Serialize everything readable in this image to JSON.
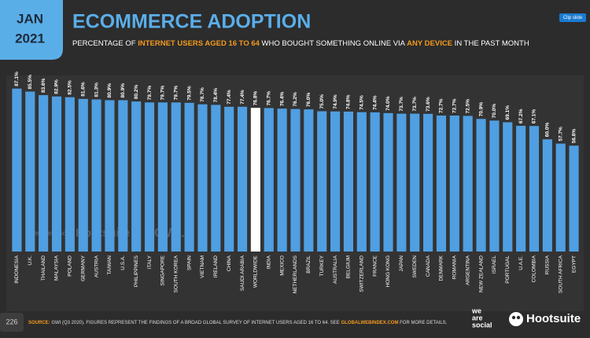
{
  "date_badge": {
    "month": "JAN",
    "year": "2021"
  },
  "chart_data": {
    "type": "bar",
    "title": "ECOMMERCE ADOPTION",
    "subtitle": [
      {
        "text": "PERCENTAGE OF ",
        "highlight": false
      },
      {
        "text": "INTERNET USERS AGED 16 TO 64",
        "highlight": true
      },
      {
        "text": " WHO BOUGHT SOMETHING ONLINE VIA ",
        "highlight": false
      },
      {
        "text": "ANY DEVICE",
        "highlight": true
      },
      {
        "text": " IN THE PAST MONTH",
        "highlight": false
      }
    ],
    "categories": [
      "INDONESIA",
      "U.K.",
      "THAILAND",
      "MALAYSIA",
      "POLAND",
      "GERMANY",
      "AUSTRIA",
      "TAIWAN",
      "U.S.A.",
      "PHILIPPINES",
      "ITALY",
      "SINGAPORE",
      "SOUTH KOREA",
      "SPAIN",
      "VIETNAM",
      "IRELAND",
      "CHINA",
      "SAUDI ARABIA",
      "WORLDWIDE",
      "INDIA",
      "MEXICO",
      "NETHERLANDS",
      "BRAZIL",
      "TURKEY",
      "AUSTRALIA",
      "BELGIUM",
      "SWITZERLAND",
      "FRANCE",
      "HONG KONG",
      "JAPAN",
      "SWEDEN",
      "CANADA",
      "DENMARK",
      "ROMANIA",
      "ARGENTINA",
      "NEW ZEALAND",
      "ISRAEL",
      "PORTUGAL",
      "U.A.E.",
      "COLOMBIA",
      "RUSSIA",
      "SOUTH AFRICA",
      "EGYPT"
    ],
    "values": [
      87.1,
      85.5,
      83.6,
      82.9,
      82.5,
      81.6,
      81.3,
      80.9,
      80.9,
      80.2,
      79.7,
      79.7,
      79.7,
      79.5,
      78.7,
      78.4,
      77.4,
      77.4,
      76.8,
      76.7,
      76.4,
      76.2,
      76.0,
      75.0,
      74.9,
      74.8,
      74.5,
      74.4,
      74.0,
      73.7,
      73.7,
      73.6,
      72.7,
      72.7,
      72.5,
      70.9,
      70.0,
      69.1,
      67.2,
      67.1,
      60.0,
      57.7,
      56.6
    ],
    "value_labels": [
      "87.1%",
      "85.5%",
      "83.6%",
      "82.9%",
      "82.5%",
      "81.6%",
      "81.3%",
      "80.9%",
      "80.9%",
      "80.2%",
      "79.7%",
      "79.7%",
      "79.7%",
      "79.5%",
      "78.7%",
      "78.4%",
      "77.4%",
      "77.4%",
      "76.8%",
      "76.7%",
      "76.4%",
      "76.2%",
      "76.0%",
      "75.0%",
      "74.9%",
      "74.8%",
      "74.5%",
      "74.4%",
      "74.0%",
      "73.7%",
      "73.7%",
      "73.6%",
      "72.7%",
      "72.7%",
      "72.5%",
      "70.9%",
      "70.0%",
      "69.1%",
      "67.2%",
      "67.1%",
      "60.0%",
      "57.7%",
      "56.6%"
    ],
    "colors": [
      "#4f9fe2",
      "#4f9fe2",
      "#4f9fe2",
      "#4f9fe2",
      "#4f9fe2",
      "#4f9fe2",
      "#4f9fe2",
      "#4f9fe2",
      "#4f9fe2",
      "#4f9fe2",
      "#4f9fe2",
      "#4f9fe2",
      "#4f9fe2",
      "#4f9fe2",
      "#4f9fe2",
      "#4f9fe2",
      "#4f9fe2",
      "#4f9fe2",
      "#ffffff",
      "#4f9fe2",
      "#4f9fe2",
      "#4f9fe2",
      "#4f9fe2",
      "#4f9fe2",
      "#4f9fe2",
      "#4f9fe2",
      "#4f9fe2",
      "#4f9fe2",
      "#4f9fe2",
      "#4f9fe2",
      "#4f9fe2",
      "#4f9fe2",
      "#4f9fe2",
      "#4f9fe2",
      "#4f9fe2",
      "#4f9fe2",
      "#4f9fe2",
      "#4f9fe2",
      "#4f9fe2",
      "#4f9fe2",
      "#4f9fe2",
      "#4f9fe2",
      "#4f9fe2"
    ],
    "ylim": [
      0,
      100
    ]
  },
  "footer": {
    "page_number": "226",
    "source_label": "SOURCE:",
    "source_text": " GWI (Q3 2020). FIGURES REPRESENT THE FINDINGS OF A BROAD GLOBAL SURVEY OF INTERNET USERS AGED 16 TO 64. SEE ",
    "source_link": "GLOBALWEBINDEX.COM",
    "source_end": " FOR MORE DETAILS."
  },
  "logos": {
    "we_are_social": [
      "we",
      "are",
      "social"
    ],
    "hootsuite": "Hootsuite"
  },
  "watermarks": [
    "we are social",
    "Hootsuite",
    "GWI."
  ],
  "clip_button": "Clip slide"
}
